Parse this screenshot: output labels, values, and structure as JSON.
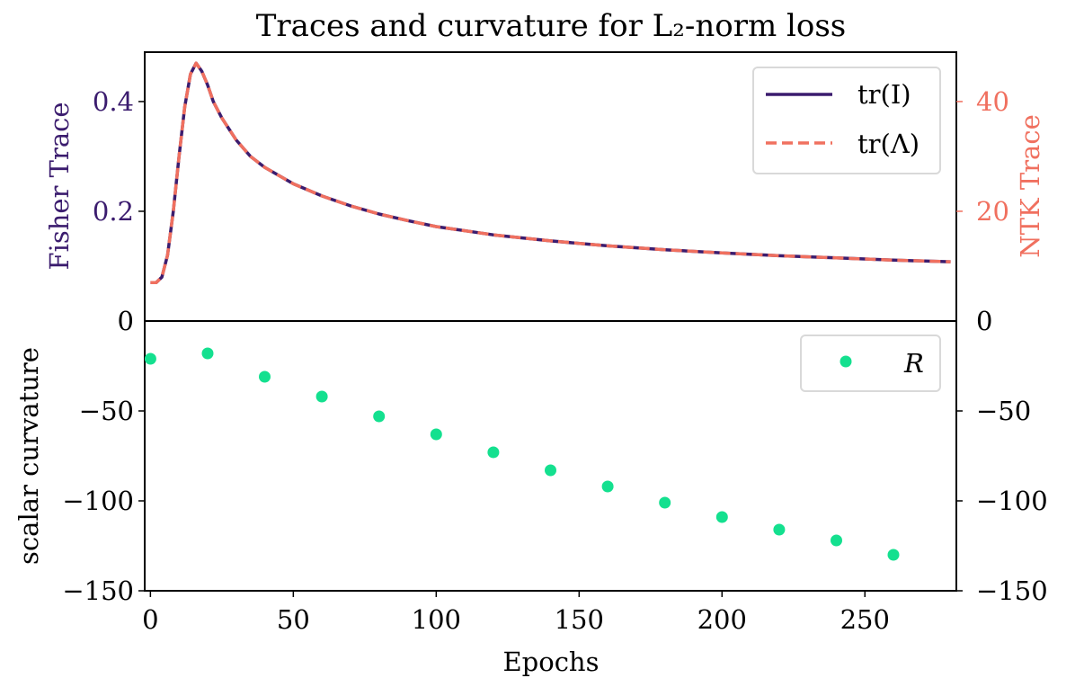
{
  "chart_data": {
    "title": "Traces and curvature for L₂-norm loss",
    "panels": [
      {
        "type": "line",
        "ylabel_left": "Fisher Trace",
        "ylabel_right": "NTK Trace",
        "ylim_left": [
          0,
          0.49
        ],
        "ylim_right": [
          0,
          49
        ],
        "yticks_left": [
          0,
          0.2,
          0.4
        ],
        "yticks_right": [
          0,
          20,
          40
        ],
        "ytick_labels_left": [
          "0",
          "0.2",
          "0.4"
        ],
        "ytick_labels_right": [
          "0",
          "20",
          "40"
        ],
        "legend_position": "top-right",
        "series": [
          {
            "name": "tr(I)",
            "axis": "left",
            "color": "#3b1c6e",
            "style": "solid",
            "x": [
              0,
              2,
              4,
              6,
              8,
              10,
              12,
              14,
              16,
              18,
              20,
              22,
              25,
              30,
              35,
              40,
              50,
              60,
              70,
              80,
              90,
              100,
              120,
              140,
              160,
              180,
              200,
              220,
              240,
              260,
              280
            ],
            "y": [
              0.07,
              0.07,
              0.08,
              0.12,
              0.2,
              0.3,
              0.39,
              0.45,
              0.47,
              0.455,
              0.43,
              0.4,
              0.37,
              0.33,
              0.3,
              0.28,
              0.25,
              0.228,
              0.21,
              0.195,
              0.183,
              0.172,
              0.157,
              0.146,
              0.137,
              0.13,
              0.124,
              0.119,
              0.115,
              0.111,
              0.108
            ]
          },
          {
            "name": "tr(Λ)",
            "axis": "right",
            "color": "#f0705f",
            "style": "dashed",
            "x": [
              0,
              2,
              4,
              6,
              8,
              10,
              12,
              14,
              16,
              18,
              20,
              22,
              25,
              30,
              35,
              40,
              50,
              60,
              70,
              80,
              90,
              100,
              120,
              140,
              160,
              180,
              200,
              220,
              240,
              260,
              280
            ],
            "y": [
              7.0,
              7.0,
              8.0,
              12.0,
              20.0,
              30.0,
              39.0,
              45.0,
              47.0,
              45.5,
              43.0,
              40.0,
              37.0,
              33.0,
              30.0,
              28.0,
              25.0,
              22.8,
              21.0,
              19.5,
              18.3,
              17.2,
              15.7,
              14.6,
              13.7,
              13.0,
              12.4,
              11.9,
              11.5,
              11.1,
              10.8
            ]
          }
        ]
      },
      {
        "type": "scatter",
        "ylabel_left": "scalar curvature",
        "ylim": [
          -150,
          0
        ],
        "yticks": [
          -150,
          -100,
          -50,
          0
        ],
        "ytick_labels_left": [
          "−150",
          "−100",
          "−50",
          "0"
        ],
        "ytick_labels_right": [
          "−150",
          "−100",
          "−50",
          "0"
        ],
        "xlabel": "Epochs",
        "xlim": [
          -2,
          282
        ],
        "xticks": [
          0,
          50,
          100,
          150,
          200,
          250
        ],
        "xtick_labels": [
          "0",
          "50",
          "100",
          "150",
          "200",
          "250"
        ],
        "legend_position": "top-right",
        "series": [
          {
            "name": "R",
            "color": "#14e08f",
            "x": [
              0,
              20,
              40,
              60,
              80,
              100,
              120,
              140,
              160,
              180,
              200,
              220,
              240,
              260
            ],
            "y": [
              -21,
              -18,
              -31,
              -42,
              -53,
              -63,
              -73,
              -83,
              -92,
              -101,
              -109,
              -116,
              -122,
              -130
            ]
          }
        ]
      }
    ]
  }
}
